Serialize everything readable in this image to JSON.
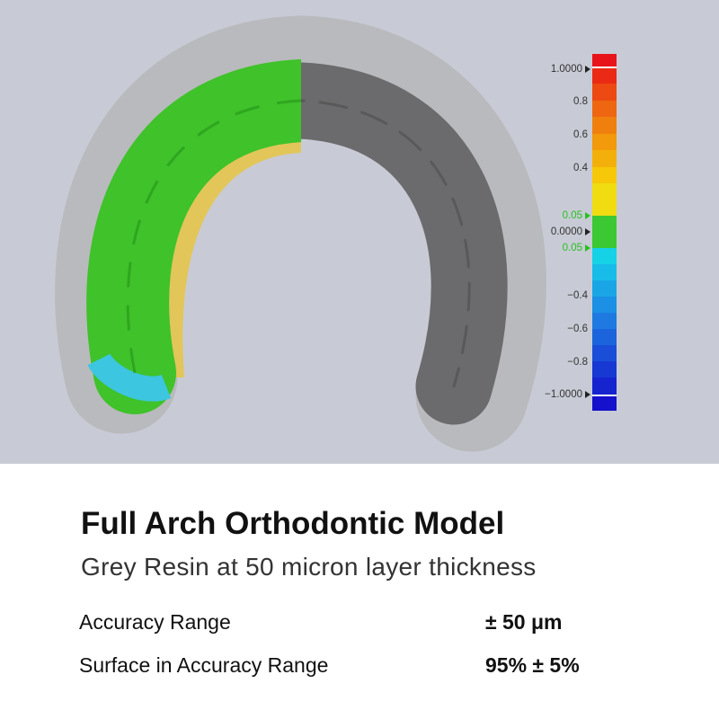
{
  "title": "Full Arch Orthodontic Model",
  "subtitle": "Grey Resin at 50 micron layer thickness",
  "scale_labels": [
    "1.0000",
    "0.8",
    "0.6",
    "0.4",
    "0.05",
    "0.0000",
    "0.05",
    "−0.4",
    "−0.6",
    "−0.8",
    "−1.0000"
  ],
  "specs": [
    {
      "label": "Accuracy Range",
      "value": "± 50 μm"
    },
    {
      "label": "Surface in Accuracy Range",
      "value": "95% ± 5%"
    }
  ]
}
